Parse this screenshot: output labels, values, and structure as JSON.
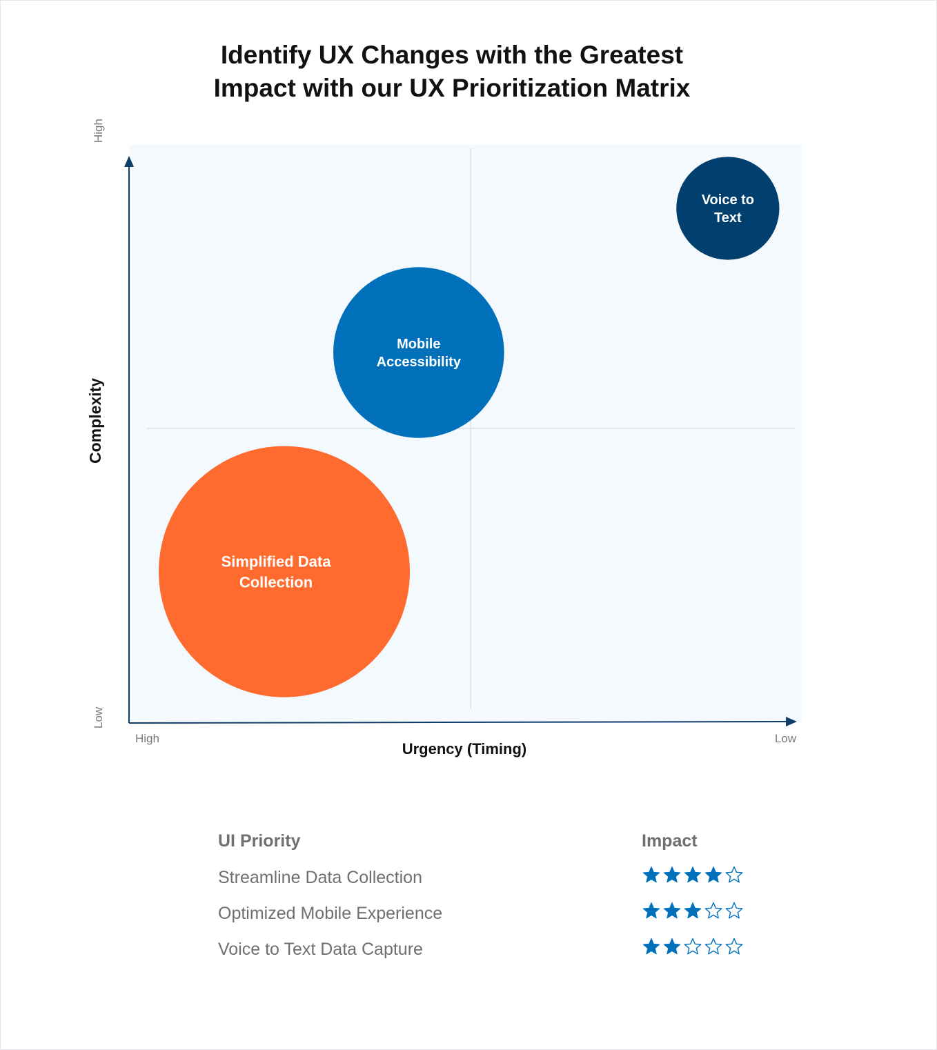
{
  "title": {
    "line1": "Identify UX Changes with the Greatest",
    "line2": "Impact with our UX Prioritization Matrix"
  },
  "colors": {
    "orange": "#ff6b2f",
    "blue": "#0070bb",
    "navy": "#003f6e",
    "axis": "#0d3d68",
    "plot_background": "#f4f9fd",
    "star": "#0070bb"
  },
  "chart_data": {
    "type": "bubble",
    "xlabel": "Urgency (Timing)",
    "ylabel": "Complexity",
    "x_ticks": {
      "start": "High",
      "end": "Low"
    },
    "y_ticks": {
      "start": "Low",
      "end": "High"
    },
    "x_axis_direction": "High to Low",
    "y_axis_direction": "Low to High",
    "quadrant_dividers": true,
    "points": [
      {
        "label": "Simplified Data Collection",
        "lines": [
          "Simplified Data",
          "Collection"
        ],
        "x": 0.23,
        "y": 0.26,
        "size": 1.0,
        "color": "#ff6b2f"
      },
      {
        "label": "Mobile Accessibility",
        "lines": [
          "Mobile",
          "Accessibility"
        ],
        "x": 0.43,
        "y": 0.64,
        "size": 0.68,
        "color": "#0070bb"
      },
      {
        "label": "Voice to Text",
        "lines": [
          "Voice to",
          "Text"
        ],
        "x": 0.89,
        "y": 0.89,
        "size": 0.41,
        "color": "#003f6e"
      }
    ]
  },
  "table": {
    "col1": "UI Priority",
    "col2": "Impact",
    "rows": [
      {
        "label": "Streamline Data Collection",
        "rating": 4,
        "max": 5
      },
      {
        "label": "Optimized Mobile Experience",
        "rating": 3,
        "max": 5
      },
      {
        "label": "Voice to Text Data Capture",
        "rating": 2,
        "max": 5
      }
    ]
  }
}
